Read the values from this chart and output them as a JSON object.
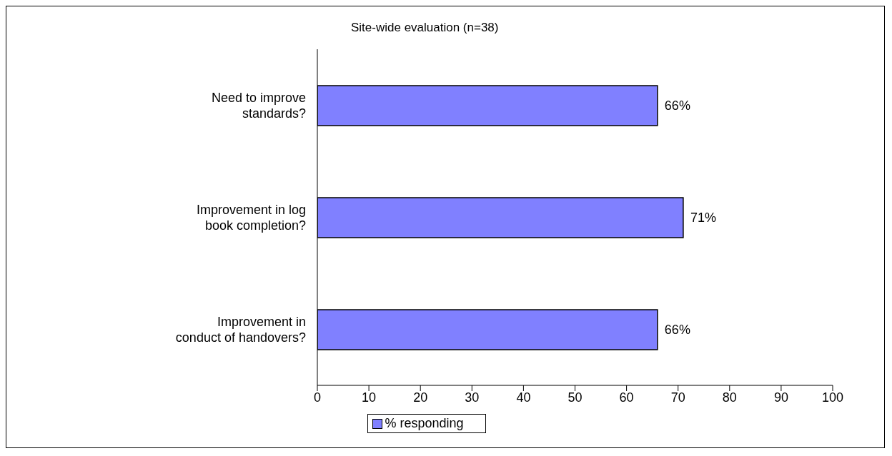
{
  "chart_data": {
    "type": "bar",
    "orientation": "horizontal",
    "title": "Site-wide evaluation (n=38)",
    "categories": [
      "Need to improve standards?",
      "Improvement in log book completion?",
      "Improvement in conduct of handovers?"
    ],
    "series": [
      {
        "name": "% responding",
        "color": "#8080ff",
        "values": [
          66,
          71,
          66
        ],
        "value_labels": [
          "66%",
          "71%",
          "66%"
        ]
      }
    ],
    "xlim": [
      0,
      100
    ],
    "xticks": [
      0,
      10,
      20,
      30,
      40,
      50,
      60,
      70,
      80,
      90,
      100
    ],
    "grid": false,
    "legend": "bottom"
  }
}
